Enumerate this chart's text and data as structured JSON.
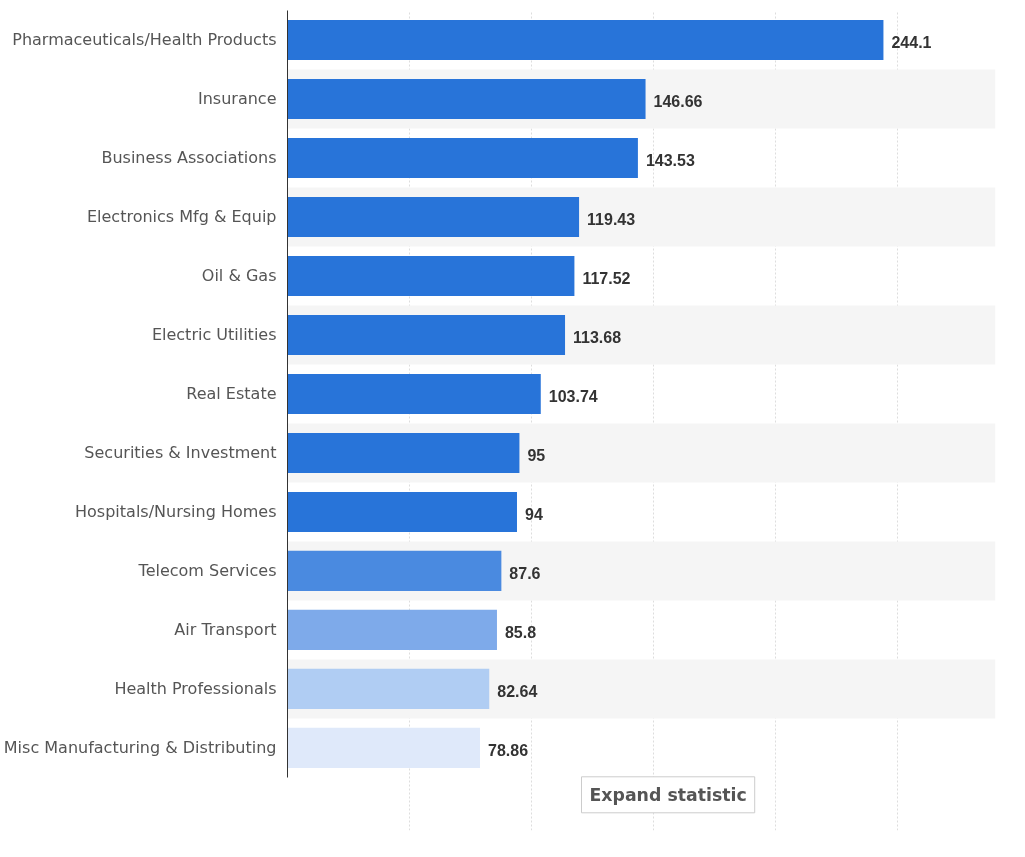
{
  "chart_data": {
    "type": "bar",
    "orientation": "horizontal",
    "categories": [
      "Pharmaceuticals/Health Products",
      "Insurance",
      "Business Associations",
      "Electronics Mfg & Equip",
      "Oil & Gas",
      "Electric Utilities",
      "Real Estate",
      "Securities & Investment",
      "Hospitals/Nursing Homes",
      "Telecom Services",
      "Air Transport",
      "Health Professionals",
      "Misc Manufacturing & Distributing"
    ],
    "values": [
      244.1,
      146.66,
      143.53,
      119.43,
      117.52,
      113.68,
      103.74,
      95,
      94,
      87.6,
      85.8,
      82.64,
      78.86
    ],
    "colors": [
      "#2874d9",
      "#2874d9",
      "#2874d9",
      "#2874d9",
      "#2874d9",
      "#2874d9",
      "#2874d9",
      "#2874d9",
      "#2874d9",
      "#4a8ae0",
      "#7eaaea",
      "#b0cdf3",
      "#dfe9fa"
    ],
    "data_labels": true,
    "xlim": [
      0,
      290
    ],
    "xticks": [
      {
        "value": 0,
        "label": null
      },
      {
        "value": 50,
        "label": null
      },
      {
        "value": 100,
        "label": null
      },
      {
        "value": 150,
        "label": null
      },
      {
        "value": 200,
        "label": null
      },
      {
        "value": 250,
        "label": null
      }
    ],
    "grid": "x",
    "tick_labels": "y",
    "annotations": [
      "Expand statistic"
    ]
  }
}
